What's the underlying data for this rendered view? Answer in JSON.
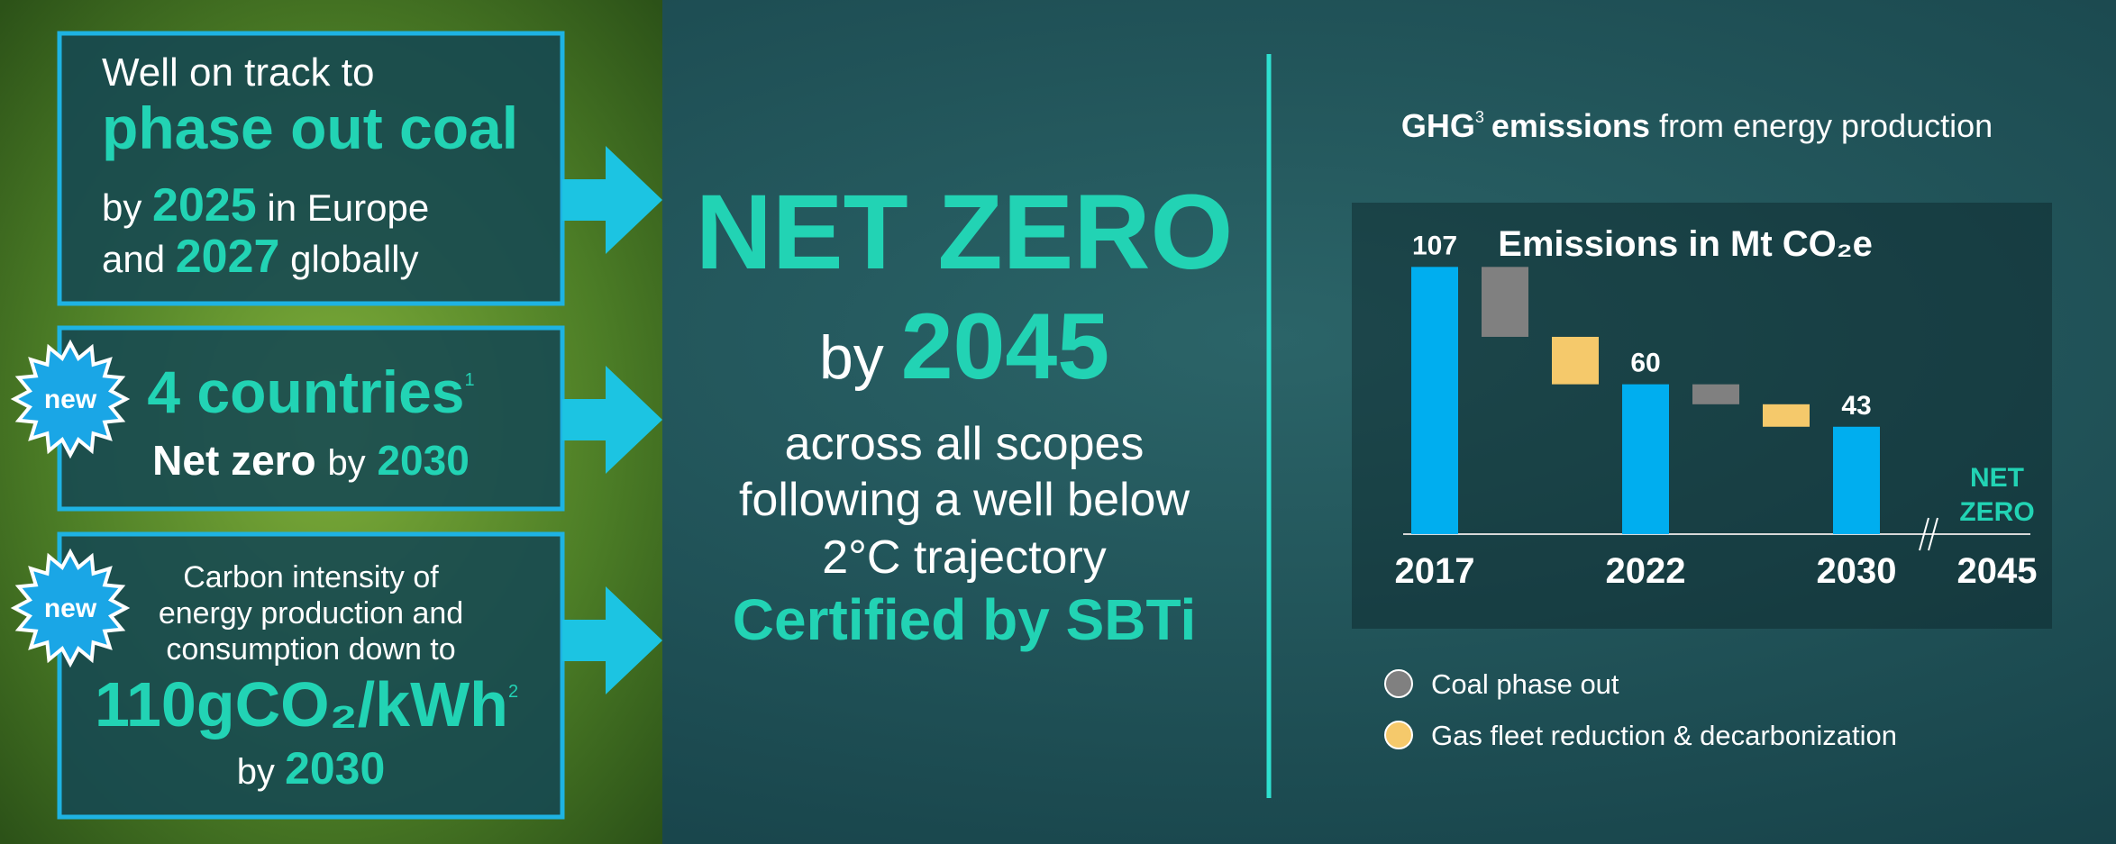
{
  "left_panel": {
    "box1": {
      "line1": "Well on track to",
      "highlight": "phase out coal",
      "line3_prefix": "by",
      "year_europe": "2025",
      "line3_suffix": "in Europe",
      "line4_prefix": "and",
      "year_global": "2027",
      "line4_suffix": "globally"
    },
    "box2": {
      "badge": "new",
      "headline": "4 countries",
      "footnote": "1",
      "line2_bold": "Net zero",
      "line2_by": "by",
      "year": "2030"
    },
    "box3": {
      "badge": "new",
      "lines": [
        "Carbon intensity of",
        "energy production and",
        "consumption down to"
      ],
      "target": "110gCO₂/kWh",
      "footnote": "2",
      "by": "by",
      "year": "2030"
    }
  },
  "center": {
    "headline": "NET ZERO",
    "by": "by",
    "year": "2045",
    "lines": [
      "across all scopes",
      "following a well below",
      "2°C trajectory"
    ],
    "certified": "Certified by SBTi"
  },
  "right_panel": {
    "heading_bold": "GHG",
    "heading_footnote": "3",
    "heading_bold2": "emissions",
    "heading_rest": "from energy production"
  },
  "chart_data": {
    "type": "waterfall",
    "title": "Emissions in Mt CO₂e",
    "categories": [
      "2017",
      null,
      null,
      "2022",
      null,
      null,
      "2030",
      "2045"
    ],
    "series": [
      {
        "color": "#00aeef",
        "values": [
          107,
          null,
          null,
          60,
          null,
          null,
          43,
          null
        ]
      },
      {
        "name": "Coal phase out",
        "color": "#808080",
        "values": [
          null,
          -28,
          null,
          null,
          -8,
          null,
          null,
          null
        ]
      },
      {
        "name": "Gas fleet reduction & decarbonization",
        "color": "#f5c96b",
        "values": [
          null,
          null,
          -19,
          null,
          null,
          -9,
          null,
          null
        ]
      }
    ],
    "annotation": [
      "NET",
      "ZERO"
    ],
    "ylim": [
      0,
      110
    ],
    "legend": "bottom-left"
  }
}
